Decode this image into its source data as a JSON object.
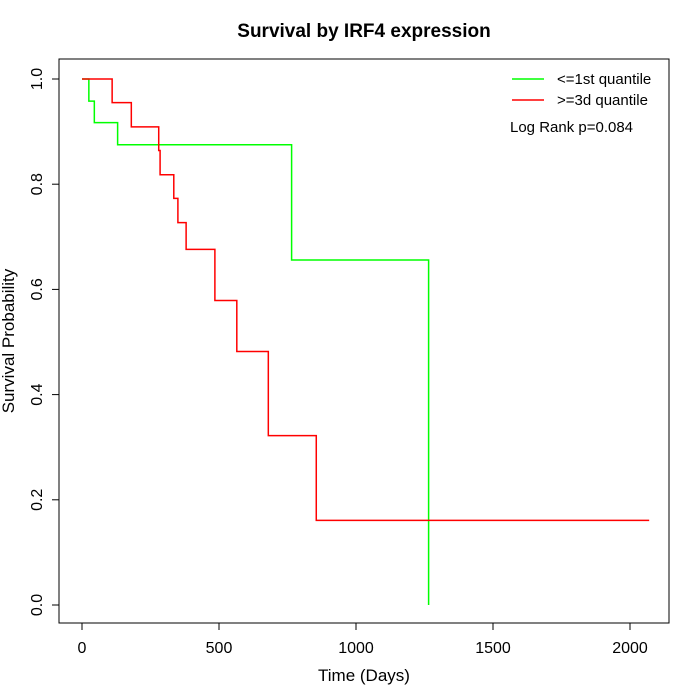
{
  "chart_data": {
    "type": "line",
    "title": "Survival by IRF4 expression",
    "xlabel": "Time (Days)",
    "ylabel": "Survival Probability",
    "xlim": [
      0,
      2070
    ],
    "ylim": [
      0,
      1.0
    ],
    "x_ticks": [
      0,
      500,
      1000,
      1500,
      2000
    ],
    "x_tick_labels": [
      "0",
      "500",
      "1000",
      "1500",
      "2000"
    ],
    "y_ticks": [
      0.0,
      0.2,
      0.4,
      0.6,
      0.8,
      1.0
    ],
    "y_tick_labels": [
      "0.0",
      "0.2",
      "0.4",
      "0.6",
      "0.8",
      "1.0"
    ],
    "grid": false,
    "legend_position": "top-right",
    "annotation": "Log Rank p=0.084",
    "series": [
      {
        "name": "<=1st quantile",
        "color": "#00ff00",
        "style": "step",
        "x": [
          0,
          25,
          45,
          130,
          765,
          1265
        ],
        "y": [
          1.0,
          0.958,
          0.917,
          0.875,
          0.656,
          0.0
        ]
      },
      {
        "name": ">=3d quantile",
        "color": "#ff0000",
        "style": "step",
        "x": [
          0,
          110,
          180,
          280,
          285,
          335,
          350,
          380,
          485,
          565,
          680,
          855,
          2070
        ],
        "y": [
          1.0,
          0.955,
          0.909,
          0.864,
          0.818,
          0.773,
          0.727,
          0.676,
          0.579,
          0.482,
          0.322,
          0.161,
          0.161
        ]
      }
    ]
  }
}
